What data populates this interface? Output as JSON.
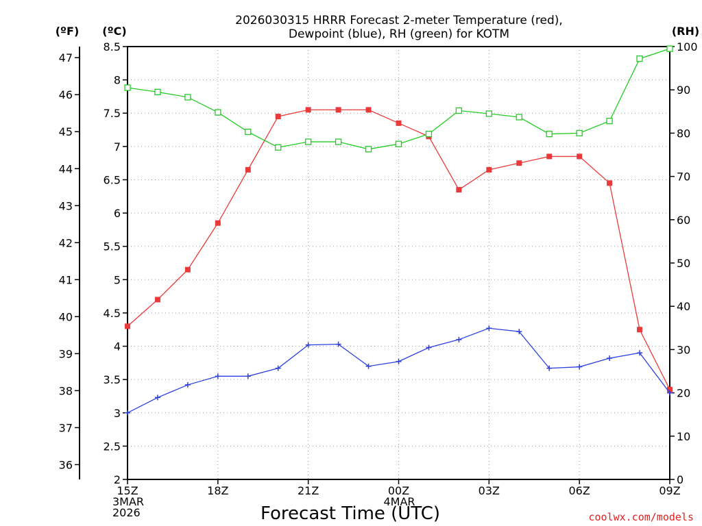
{
  "chart_data": {
    "type": "line",
    "title_line1": "2026030315 HRRR Forecast 2-meter Temperature (red),",
    "title_line2": "Dewpoint (blue), RH (green) for KOTM",
    "xlabel": "Forecast Time (UTC)",
    "credit": "coolwx.com/models",
    "units": {
      "fahrenheit": "(ºF)",
      "celsius": "(ºC)",
      "rh": "(RH)"
    },
    "grid": true,
    "x": [
      0,
      1,
      2,
      3,
      4,
      5,
      6,
      7,
      8,
      9,
      10,
      11,
      12,
      13,
      14,
      15,
      16,
      17,
      18
    ],
    "x_ticks": [
      {
        "x": 0,
        "label": "15Z",
        "sub1": "3MAR",
        "sub2": "2026"
      },
      {
        "x": 3,
        "label": "18Z",
        "sub1": "",
        "sub2": ""
      },
      {
        "x": 6,
        "label": "21Z",
        "sub1": "",
        "sub2": ""
      },
      {
        "x": 9,
        "label": "00Z",
        "sub1": "4MAR",
        "sub2": ""
      },
      {
        "x": 12,
        "label": "03Z",
        "sub1": "",
        "sub2": ""
      },
      {
        "x": 15,
        "label": "06Z",
        "sub1": "",
        "sub2": ""
      },
      {
        "x": 18,
        "label": "09Z",
        "sub1": "",
        "sub2": ""
      }
    ],
    "xlim": [
      0,
      18
    ],
    "ylim_celsius": [
      2,
      8.5
    ],
    "y_ticks_celsius": [
      "2",
      "2.5",
      "3",
      "3.5",
      "4",
      "4.5",
      "5",
      "5.5",
      "6",
      "6.5",
      "7",
      "7.5",
      "8",
      "8.5"
    ],
    "y_ticks_fahrenheit": [
      "36",
      "37",
      "38",
      "39",
      "40",
      "41",
      "42",
      "43",
      "44",
      "45",
      "46",
      "47"
    ],
    "ylim_rh": [
      0,
      100
    ],
    "y_ticks_rh": [
      "0",
      "10",
      "20",
      "30",
      "40",
      "50",
      "60",
      "70",
      "80",
      "90",
      "100"
    ],
    "series": [
      {
        "name": "Temperature",
        "axis": "celsius",
        "color": "#e83a3a",
        "marker": "filled-square",
        "values": [
          4.3,
          4.7,
          5.15,
          5.85,
          6.65,
          7.45,
          7.55,
          7.55,
          7.55,
          7.35,
          7.15,
          6.35,
          6.65,
          6.75,
          6.85,
          6.85,
          6.45,
          4.25,
          3.35
        ]
      },
      {
        "name": "Dewpoint",
        "axis": "celsius",
        "color": "#2a3fe0",
        "marker": "plus",
        "values": [
          3.0,
          3.23,
          3.42,
          3.55,
          3.55,
          3.67,
          4.02,
          4.03,
          3.7,
          3.77,
          3.98,
          4.1,
          4.27,
          4.22,
          3.67,
          3.69,
          3.82,
          3.9,
          3.3
        ]
      },
      {
        "name": "RH",
        "axis": "rh",
        "color": "#22cc22",
        "marker": "open-square",
        "values": [
          90.5,
          89.5,
          88.3,
          84.8,
          80.3,
          76.7,
          78.0,
          78.0,
          76.3,
          77.5,
          79.8,
          85.2,
          84.5,
          83.7,
          79.8,
          80.0,
          82.8,
          97.2,
          99.5
        ]
      }
    ]
  }
}
